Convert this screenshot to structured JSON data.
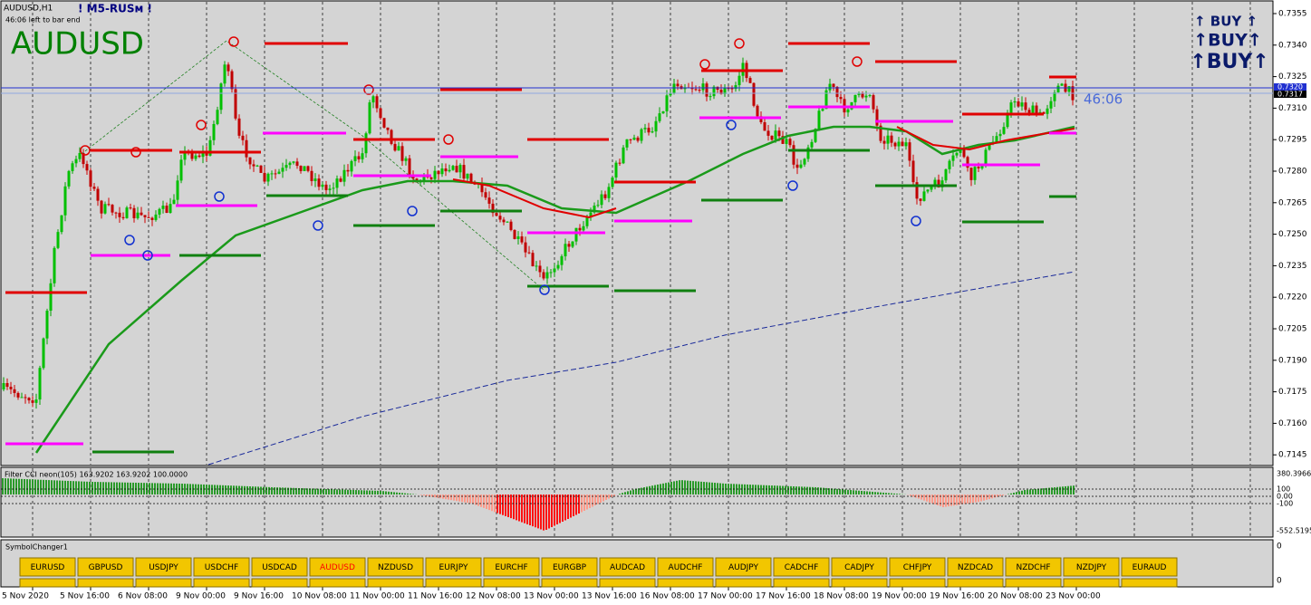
{
  "header": {
    "symbol": "AUDUSD,H1",
    "tag": "! M5-RUSм !",
    "timer": "46:06 left to bar end",
    "big_symbol": "AUDUSD"
  },
  "signals": [
    "↑ BUY ↑",
    "↑BUY↑",
    "↑BUY↑"
  ],
  "countdown": "46:06",
  "price_axis": [
    "0.7355",
    "0.7340",
    "0.7325",
    "0.7310",
    "0.7295",
    "0.7280",
    "0.7265",
    "0.7250",
    "0.7235",
    "0.7220",
    "0.7205",
    "0.7190",
    "0.7175",
    "0.7160",
    "0.7145"
  ],
  "price_labels": [
    "0.7320",
    "0.7317"
  ],
  "indicator": {
    "label": "Filter CCI neon(105) 163.9202 163.9202 100.0000",
    "levels": [
      "380.3966",
      "100",
      "0.00",
      "-100",
      "-552.5195"
    ]
  },
  "symbol_changer": {
    "label": "SymbolChanger1",
    "axis": [
      "0",
      "0"
    ],
    "active": 5,
    "buttons": [
      "EURUSD",
      "GBPUSD",
      "USDJPY",
      "USDCHF",
      "USDCAD",
      "AUDUSD",
      "NZDUSD",
      "EURJPY",
      "EURCHF",
      "EURGBP",
      "AUDCAD",
      "AUDCHF",
      "AUDJPY",
      "CADCHF",
      "CADJPY",
      "CHFJPY",
      "NZDCAD",
      "NZDCHF",
      "NZDJPY",
      "EURAUD"
    ]
  },
  "time_axis": [
    "5 Nov 2020",
    "5 Nov 16:00",
    "6 Nov 08:00",
    "9 Nov 00:00",
    "9 Nov 16:00",
    "10 Nov 08:00",
    "11 Nov 00:00",
    "11 Nov 16:00",
    "12 Nov 08:00",
    "13 Nov 00:00",
    "13 Nov 16:00",
    "16 Nov 08:00",
    "17 Nov 00:00",
    "17 Nov 16:00",
    "18 Nov 08:00",
    "19 Nov 00:00",
    "19 Nov 16:00",
    "20 Nov 08:00",
    "23 Nov 00:00"
  ]
}
